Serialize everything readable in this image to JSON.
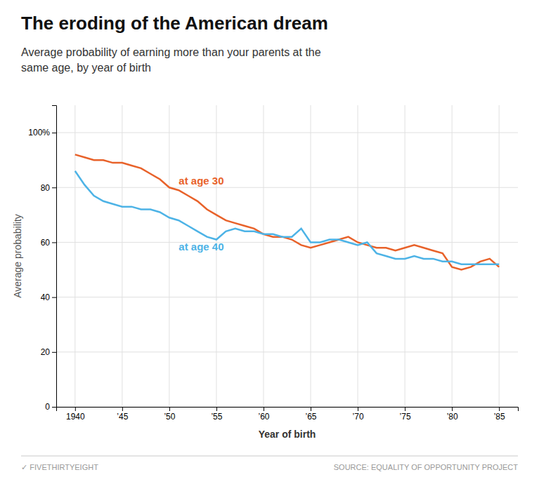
{
  "chart_data": {
    "type": "line",
    "title": "The eroding of the American dream",
    "subtitle": "Average probability of earning more than your parents at the\nsame age, by year of birth",
    "x_label": "Year of birth",
    "y_label": "Average probability",
    "x": [
      1940,
      1941,
      1942,
      1943,
      1944,
      1945,
      1946,
      1947,
      1948,
      1949,
      1950,
      1951,
      1952,
      1953,
      1954,
      1955,
      1956,
      1957,
      1958,
      1959,
      1960,
      1961,
      1962,
      1963,
      1964,
      1965,
      1966,
      1967,
      1968,
      1969,
      1970,
      1971,
      1972,
      1973,
      1974,
      1975,
      1976,
      1977,
      1978,
      1979,
      1980,
      1981,
      1982,
      1983,
      1984,
      1985
    ],
    "series": [
      {
        "color": "#e8622a",
        "values": [
          92,
          91,
          90,
          90,
          89,
          89,
          88,
          87,
          85,
          83,
          80,
          79,
          77,
          75,
          72,
          70,
          68,
          67,
          66,
          65,
          63,
          62,
          62,
          61,
          59,
          58,
          59,
          60,
          61,
          62,
          60,
          59,
          58,
          58,
          57,
          58,
          59,
          58,
          57,
          56,
          51,
          50,
          51,
          53,
          54,
          51
        ]
      },
      {
        "color": "#4db3e6",
        "values": [
          86,
          81,
          77,
          75,
          74,
          73,
          73,
          72,
          72,
          71,
          69,
          68,
          66,
          64,
          62,
          61,
          64,
          65,
          64,
          64,
          63,
          63,
          62,
          62,
          65,
          60,
          60,
          61,
          61,
          60,
          59,
          60,
          56,
          55,
          54,
          54,
          55,
          54,
          54,
          53,
          53,
          52,
          52,
          52,
          52,
          52
        ]
      }
    ],
    "annotations": [
      {
        "text": "at age 30",
        "x": 1951,
        "y": 81,
        "color": "#e8622a"
      },
      {
        "text": "at age 40",
        "x": 1951,
        "y": 57,
        "color": "#4db3e6"
      }
    ],
    "footer": [
      "✓ FIVETHIRTYEIGHT",
      "SOURCE: EQUALITY OF OPPORTUNITY PROJECT"
    ],
    "xlim": [
      1938,
      1987
    ],
    "xticks": [
      1940,
      {
        "value": 1945,
        "label": "’45"
      },
      {
        "value": 1950,
        "label": "’50"
      },
      {
        "value": 1955,
        "label": "’55"
      },
      {
        "value": 1960,
        "label": "’60"
      },
      {
        "value": 1965,
        "label": "’65"
      },
      {
        "value": 1970,
        "label": "’70"
      },
      {
        "value": 1975,
        "label": "’75"
      },
      {
        "value": 1980,
        "label": "’80"
      },
      {
        "value": 1985,
        "label": "’85"
      }
    ],
    "ylim": [
      0,
      110
    ],
    "yticks": [
      0,
      20,
      40,
      60,
      80,
      {
        "value": 100,
        "label": "100%"
      }
    ],
    "grid": true
  }
}
